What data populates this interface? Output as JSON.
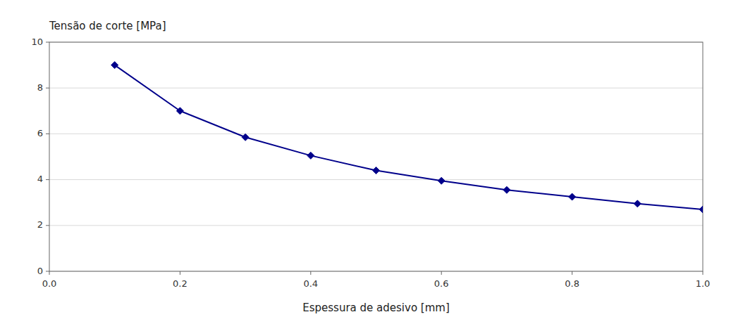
{
  "chart_data": {
    "type": "line",
    "xlabel": "Espessura de adesivo [mm]",
    "ylabel": "Tensão de corte [MPa]",
    "x": [
      0.1,
      0.2,
      0.3,
      0.4,
      0.5,
      0.6,
      0.7,
      0.8,
      0.9,
      1.0
    ],
    "values": [
      9.0,
      7.0,
      5.85,
      5.05,
      4.4,
      3.95,
      3.55,
      3.25,
      2.95,
      2.7
    ],
    "color": "#00008B",
    "marker": "diamond",
    "xlim": [
      0.0,
      1.0
    ],
    "ylim": [
      0,
      10
    ],
    "xticks": [
      {
        "value": 0.0,
        "label": "0.0"
      },
      0.2,
      0.4,
      0.6,
      0.8,
      {
        "value": 1.0,
        "label": "1.0"
      }
    ],
    "yticks": [
      0,
      2,
      4,
      6,
      8,
      10
    ],
    "grid": "y"
  }
}
